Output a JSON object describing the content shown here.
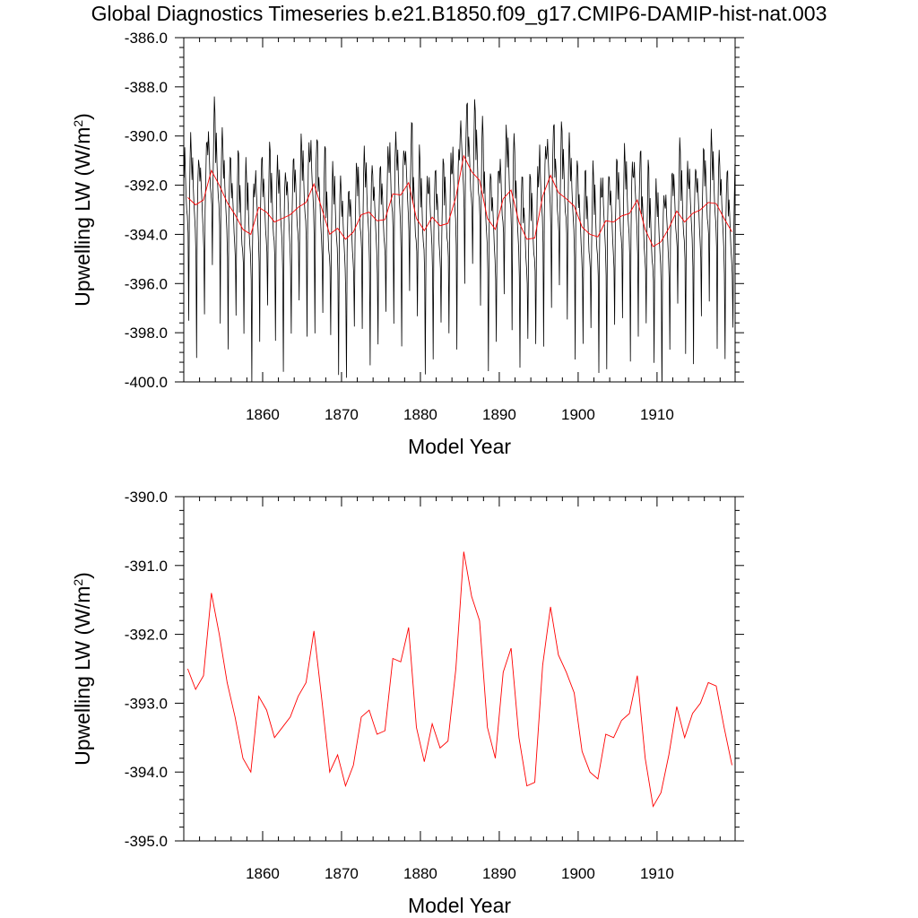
{
  "title": "Global Diagnostics Timeseries b.e21.B1850.f09_g17.CMIP6-DAMIP-hist-nat.003",
  "colors": {
    "monthly": "#000000",
    "annual": "#ff0000"
  },
  "chart_data": [
    {
      "type": "line",
      "xlabel": "Model Year",
      "ylabel": "Upwelling LW (W/m2)",
      "ylabel_main": "Upwelling LW (W/m",
      "ylabel_sup": "2",
      "ylabel_close": ")",
      "xlim": [
        1850,
        1919.9
      ],
      "ylim": [
        -400,
        -386
      ],
      "xticks": [
        1860,
        1870,
        1880,
        1890,
        1900,
        1910
      ],
      "xtick_labels": [
        "1860",
        "1870",
        "1880",
        "1890",
        "1900",
        "1910"
      ],
      "yticks": [
        -400,
        -398,
        -396,
        -394,
        -392,
        -390,
        -388,
        -386
      ],
      "ytick_labels": [
        "-400.0",
        "-398.0",
        "-396.0",
        "-394.0",
        "-392.0",
        "-390.0",
        "-388.0",
        "-386.0"
      ],
      "grid": false,
      "series": [
        {
          "style": "monthly",
          "seasonal_cycle": [
            -391.8,
            -390.9,
            -391.8,
            -392.6,
            -393.2,
            -393.6,
            -394.4,
            -397.6,
            -393.2,
            -391.4,
            -390.2,
            -390.6
          ]
        },
        {
          "style": "annual",
          "x": [
            1850.5,
            1851.5,
            1852.5,
            1853.5,
            1854.5,
            1855.5,
            1856.5,
            1857.5,
            1858.5,
            1859.5,
            1860.5,
            1861.5,
            1862.5,
            1863.5,
            1864.5,
            1865.5,
            1866.5,
            1867.5,
            1868.5,
            1869.5,
            1870.5,
            1871.5,
            1872.5,
            1873.5,
            1874.5,
            1875.5,
            1876.5,
            1877.5,
            1878.5,
            1879.5,
            1880.5,
            1881.5,
            1882.5,
            1883.5,
            1884.5,
            1885.5,
            1886.5,
            1887.5,
            1888.5,
            1889.5,
            1890.5,
            1891.5,
            1892.5,
            1893.5,
            1894.5,
            1895.5,
            1896.5,
            1897.5,
            1898.5,
            1899.5,
            1900.5,
            1901.5,
            1902.5,
            1903.5,
            1904.5,
            1905.5,
            1906.5,
            1907.5,
            1908.5,
            1909.5,
            1910.5,
            1911.5,
            1912.5,
            1913.5,
            1914.5,
            1915.5,
            1916.5,
            1917.5,
            1918.5,
            1919.5
          ],
          "values": [
            -392.5,
            -392.8,
            -392.6,
            -391.4,
            -392.0,
            -392.7,
            -393.2,
            -393.8,
            -394.0,
            -392.9,
            -393.1,
            -393.5,
            -393.35,
            -393.2,
            -392.9,
            -392.7,
            -391.95,
            -392.95,
            -394.0,
            -393.75,
            -394.2,
            -393.9,
            -393.2,
            -393.1,
            -393.45,
            -393.4,
            -392.35,
            -392.4,
            -391.9,
            -393.35,
            -393.85,
            -393.3,
            -393.65,
            -393.55,
            -392.5,
            -390.8,
            -391.45,
            -391.8,
            -393.35,
            -393.8,
            -392.55,
            -392.2,
            -393.5,
            -394.2,
            -394.15,
            -392.45,
            -391.6,
            -392.3,
            -392.55,
            -392.85,
            -393.7,
            -394.0,
            -394.1,
            -393.45,
            -393.5,
            -393.25,
            -393.15,
            -392.6,
            -393.8,
            -394.5,
            -394.3,
            -393.75,
            -393.05,
            -393.5,
            -393.15,
            -393.0,
            -392.7,
            -392.75,
            -393.35,
            -393.9
          ]
        }
      ]
    },
    {
      "type": "line",
      "xlabel": "Model Year",
      "ylabel": "Upwelling LW (W/m2)",
      "ylabel_main": "Upwelling LW (W/m",
      "ylabel_sup": "2",
      "ylabel_close": ")",
      "xlim": [
        1850,
        1919.9
      ],
      "ylim": [
        -395,
        -390
      ],
      "xticks": [
        1860,
        1870,
        1880,
        1890,
        1900,
        1910
      ],
      "xtick_labels": [
        "1860",
        "1870",
        "1880",
        "1890",
        "1900",
        "1910"
      ],
      "yticks": [
        -395,
        -394,
        -393,
        -392,
        -391,
        -390
      ],
      "ytick_labels": [
        "-395.0",
        "-394.0",
        "-393.0",
        "-392.0",
        "-391.0",
        "-390.0"
      ],
      "grid": false,
      "series": [
        {
          "style": "annual",
          "x": [
            1850.5,
            1851.5,
            1852.5,
            1853.5,
            1854.5,
            1855.5,
            1856.5,
            1857.5,
            1858.5,
            1859.5,
            1860.5,
            1861.5,
            1862.5,
            1863.5,
            1864.5,
            1865.5,
            1866.5,
            1867.5,
            1868.5,
            1869.5,
            1870.5,
            1871.5,
            1872.5,
            1873.5,
            1874.5,
            1875.5,
            1876.5,
            1877.5,
            1878.5,
            1879.5,
            1880.5,
            1881.5,
            1882.5,
            1883.5,
            1884.5,
            1885.5,
            1886.5,
            1887.5,
            1888.5,
            1889.5,
            1890.5,
            1891.5,
            1892.5,
            1893.5,
            1894.5,
            1895.5,
            1896.5,
            1897.5,
            1898.5,
            1899.5,
            1900.5,
            1901.5,
            1902.5,
            1903.5,
            1904.5,
            1905.5,
            1906.5,
            1907.5,
            1908.5,
            1909.5,
            1910.5,
            1911.5,
            1912.5,
            1913.5,
            1914.5,
            1915.5,
            1916.5,
            1917.5,
            1918.5,
            1919.5
          ],
          "values": [
            -392.5,
            -392.8,
            -392.6,
            -391.4,
            -392.0,
            -392.7,
            -393.2,
            -393.8,
            -394.0,
            -392.9,
            -393.1,
            -393.5,
            -393.35,
            -393.2,
            -392.9,
            -392.7,
            -391.95,
            -392.95,
            -394.0,
            -393.75,
            -394.2,
            -393.9,
            -393.2,
            -393.1,
            -393.45,
            -393.4,
            -392.35,
            -392.4,
            -391.9,
            -393.35,
            -393.85,
            -393.3,
            -393.65,
            -393.55,
            -392.5,
            -390.8,
            -391.45,
            -391.8,
            -393.35,
            -393.8,
            -392.55,
            -392.2,
            -393.5,
            -394.2,
            -394.15,
            -392.45,
            -391.6,
            -392.3,
            -392.55,
            -392.85,
            -393.7,
            -394.0,
            -394.1,
            -393.45,
            -393.5,
            -393.25,
            -393.15,
            -392.6,
            -393.8,
            -394.5,
            -394.3,
            -393.75,
            -393.05,
            -393.5,
            -393.15,
            -393.0,
            -392.7,
            -392.75,
            -393.35,
            -393.9
          ]
        }
      ]
    }
  ]
}
